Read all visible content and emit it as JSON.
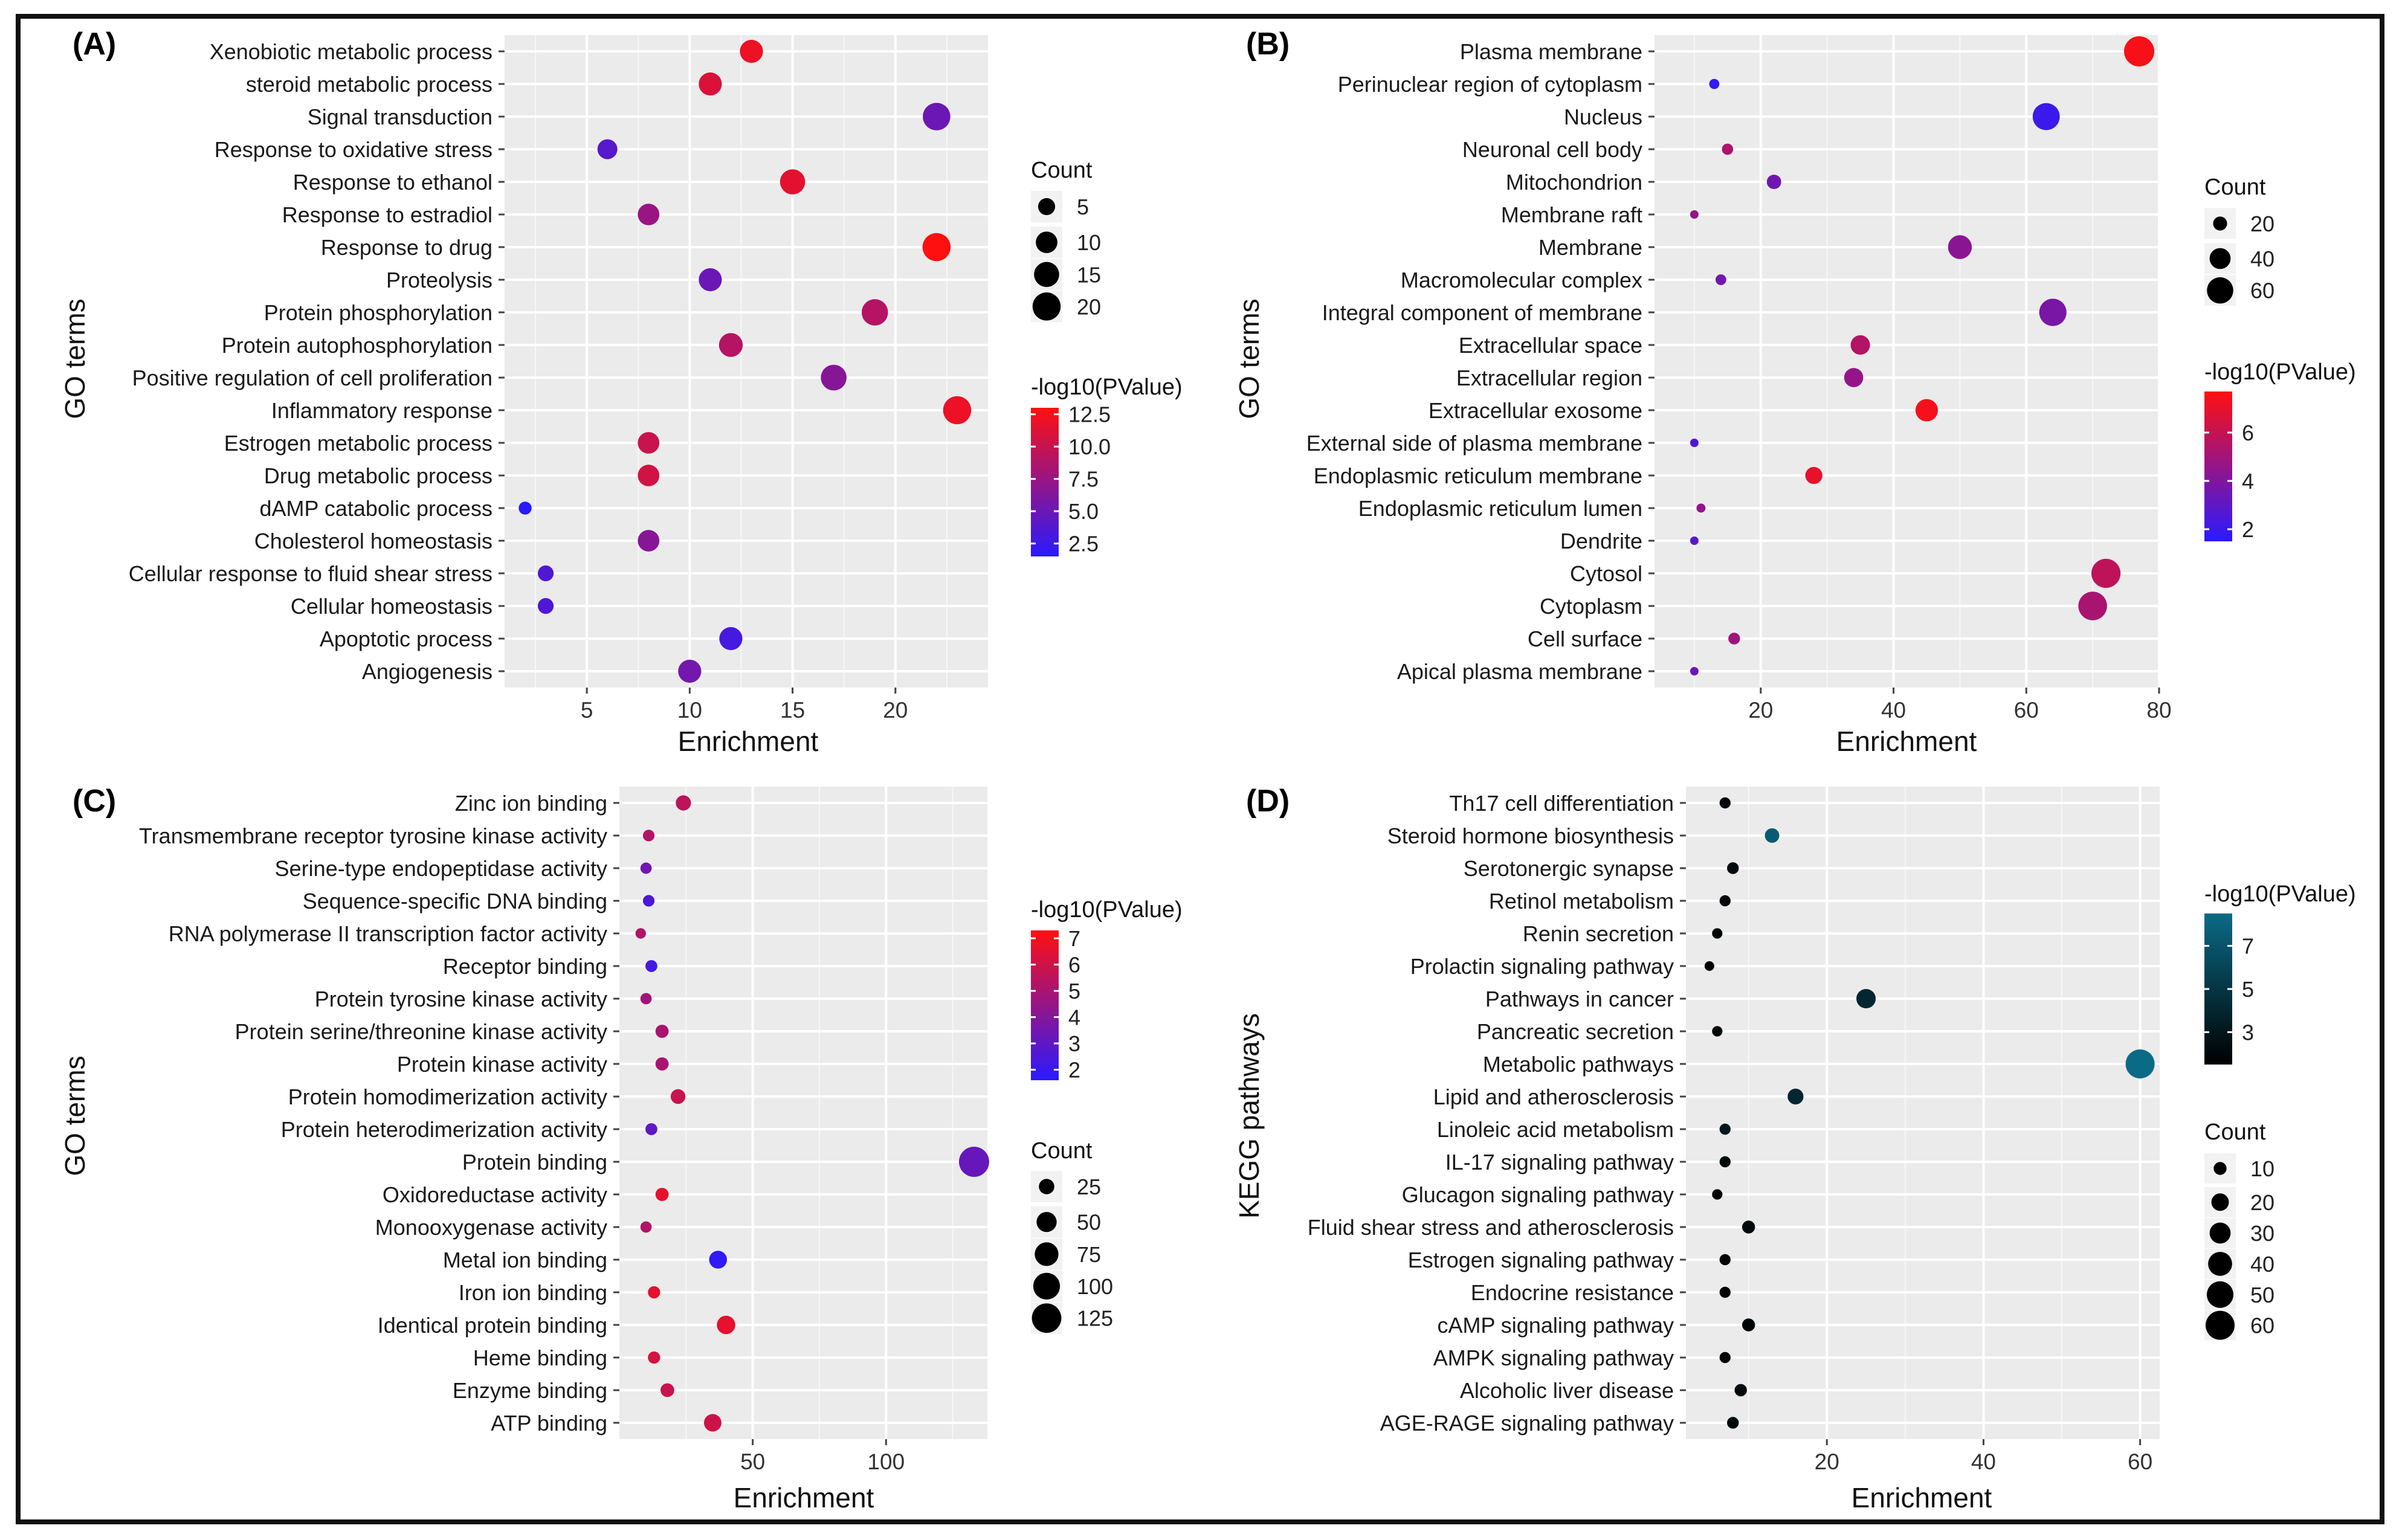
{
  "chart_data": [
    {
      "panel": "(A)",
      "type": "scatter",
      "xlabel": "Enrichment",
      "ylabel": "GO terms",
      "xlim": [
        1,
        24.5
      ],
      "xticks": [
        5,
        10,
        15,
        20
      ],
      "color_legend": {
        "title": "-log10(PValue)",
        "ticks": [
          "12.5",
          "10.0",
          "7.5",
          "5.0",
          "2.5"
        ],
        "range": [
          1.5,
          13
        ],
        "low": "#2a1aff",
        "high": "#ff1010"
      },
      "size_legend": {
        "title": "Count",
        "values": [
          5,
          10,
          15,
          20
        ]
      },
      "size_range": [
        1,
        24
      ],
      "terms": [
        "Xenobiotic metabolic process",
        "steroid metabolic process",
        "Signal transduction",
        "Response to oxidative stress",
        "Response to ethanol",
        "Response to estradiol",
        "Response to drug",
        "Proteolysis",
        "Protein phosphorylation",
        "Protein autophosphorylation",
        "Positive regulation of cell proliferation",
        "Inflammatory response",
        "Estrogen metabolic process",
        "Drug metabolic process",
        "dAMP catabolic process",
        "Cholesterol homeostasis",
        "Cellular response to fluid shear stress",
        "Cellular homeostasis",
        "Apoptotic process",
        "Angiogenesis"
      ],
      "points": [
        {
          "x": 13,
          "count": 12,
          "p": 12
        },
        {
          "x": 11,
          "count": 12,
          "p": 11
        },
        {
          "x": 22,
          "count": 19,
          "p": 5
        },
        {
          "x": 6,
          "count": 8,
          "p": 4
        },
        {
          "x": 15,
          "count": 15,
          "p": 11.5
        },
        {
          "x": 8,
          "count": 10,
          "p": 7.5
        },
        {
          "x": 22,
          "count": 20,
          "p": 13
        },
        {
          "x": 11,
          "count": 12,
          "p": 5
        },
        {
          "x": 19,
          "count": 17,
          "p": 9
        },
        {
          "x": 12,
          "count": 13,
          "p": 9
        },
        {
          "x": 17,
          "count": 16,
          "p": 6.5
        },
        {
          "x": 23,
          "count": 20,
          "p": 12
        },
        {
          "x": 8,
          "count": 10,
          "p": 10
        },
        {
          "x": 8,
          "count": 10,
          "p": 10.5
        },
        {
          "x": 2,
          "count": 2,
          "p": 1.5
        },
        {
          "x": 8,
          "count": 10,
          "p": 6.5
        },
        {
          "x": 3,
          "count": 4,
          "p": 3.5
        },
        {
          "x": 3,
          "count": 4,
          "p": 3.5
        },
        {
          "x": 12,
          "count": 12,
          "p": 3
        },
        {
          "x": 10,
          "count": 12,
          "p": 5.5
        }
      ]
    },
    {
      "panel": "(B)",
      "type": "scatter",
      "xlabel": "Enrichment",
      "ylabel": "GO terms",
      "xlim": [
        4,
        80
      ],
      "xticks": [
        20,
        40,
        60,
        80
      ],
      "color_legend": {
        "title": "-log10(PValue)",
        "ticks": [
          "6",
          "4",
          "2"
        ],
        "range": [
          1.5,
          7.7
        ],
        "low": "#2a1aff",
        "high": "#ff1010"
      },
      "size_legend": {
        "title": "Count",
        "values": [
          20,
          40,
          60
        ]
      },
      "size_range": [
        9,
        77
      ],
      "terms": [
        "Plasma membrane",
        "Perinuclear region of cytoplasm",
        "Nucleus",
        "Neuronal cell body",
        "Mitochondrion",
        "Membrane raft",
        "Membrane",
        "Macromolecular complex",
        "Integral component of membrane",
        "Extracellular space",
        "Extracellular region",
        "Extracellular exosome",
        "External side of plasma membrane",
        "Endoplasmic reticulum membrane",
        "Endoplasmic reticulum lumen",
        "Dendrite",
        "Cytosol",
        "Cytoplasm",
        "Cell surface",
        "Apical plasma membrane"
      ],
      "points": [
        {
          "x": 77,
          "count": 77,
          "p": 7.5
        },
        {
          "x": 13,
          "count": 12,
          "p": 1.8
        },
        {
          "x": 63,
          "count": 63,
          "p": 2
        },
        {
          "x": 15,
          "count": 14,
          "p": 5.3
        },
        {
          "x": 22,
          "count": 21,
          "p": 3.5
        },
        {
          "x": 10,
          "count": 9,
          "p": 4.5
        },
        {
          "x": 50,
          "count": 50,
          "p": 4.3
        },
        {
          "x": 14,
          "count": 13,
          "p": 3.6
        },
        {
          "x": 64,
          "count": 64,
          "p": 3.8
        },
        {
          "x": 35,
          "count": 35,
          "p": 5.5
        },
        {
          "x": 34,
          "count": 34,
          "p": 4.6
        },
        {
          "x": 45,
          "count": 45,
          "p": 7.4
        },
        {
          "x": 10,
          "count": 9,
          "p": 2.5
        },
        {
          "x": 28,
          "count": 28,
          "p": 7
        },
        {
          "x": 11,
          "count": 10,
          "p": 4.5
        },
        {
          "x": 10,
          "count": 9,
          "p": 2.8
        },
        {
          "x": 72,
          "count": 72,
          "p": 5.8
        },
        {
          "x": 70,
          "count": 70,
          "p": 5.2
        },
        {
          "x": 16,
          "count": 15,
          "p": 4.9
        },
        {
          "x": 10,
          "count": 9,
          "p": 3.4
        }
      ]
    },
    {
      "panel": "(C)",
      "type": "scatter",
      "xlabel": "Enrichment",
      "ylabel": "GO terms",
      "xlim": [
        0,
        138
      ],
      "xticks": [
        50,
        100
      ],
      "color_legend": {
        "title": "-log10(PValue)",
        "ticks": [
          "7",
          "6",
          "5",
          "4",
          "3",
          "2"
        ],
        "range": [
          1.6,
          7.3
        ],
        "low": "#2a1aff",
        "high": "#ff1010"
      },
      "size_legend": {
        "title": "Count",
        "values": [
          25,
          50,
          75,
          100,
          125
        ]
      },
      "size_range": [
        6,
        133
      ],
      "terms": [
        "Zinc ion binding",
        "Transmembrane receptor tyrosine kinase activity",
        "Serine-type endopeptidase activity",
        "Sequence-specific DNA binding",
        "RNA polymerase II transcription factor activity",
        "Receptor binding",
        "Protein tyrosine kinase activity",
        "Protein serine/threonine kinase activity",
        "Protein kinase activity",
        "Protein homodimerization activity",
        "Protein heterodimerization activity",
        "Protein binding",
        "Oxidoreductase activity",
        "Monooxygenase activity",
        "Metal ion binding",
        "Iron ion binding",
        "Identical protein binding",
        "Heme binding",
        "Enzyme binding",
        "ATP binding"
      ],
      "points": [
        {
          "x": 24,
          "count": 24,
          "p": 5.5
        },
        {
          "x": 11,
          "count": 11,
          "p": 5.3
        },
        {
          "x": 10,
          "count": 10,
          "p": 3.5
        },
        {
          "x": 11,
          "count": 11,
          "p": 2.5
        },
        {
          "x": 8,
          "count": 8,
          "p": 5.2
        },
        {
          "x": 12,
          "count": 12,
          "p": 2.3
        },
        {
          "x": 10,
          "count": 10,
          "p": 4.8
        },
        {
          "x": 16,
          "count": 16,
          "p": 5
        },
        {
          "x": 16,
          "count": 16,
          "p": 5
        },
        {
          "x": 22,
          "count": 22,
          "p": 5.8
        },
        {
          "x": 12,
          "count": 12,
          "p": 3
        },
        {
          "x": 133,
          "count": 133,
          "p": 3.2
        },
        {
          "x": 16,
          "count": 16,
          "p": 6.6
        },
        {
          "x": 10,
          "count": 10,
          "p": 5.3
        },
        {
          "x": 37,
          "count": 37,
          "p": 1.8
        },
        {
          "x": 13,
          "count": 13,
          "p": 6.6
        },
        {
          "x": 40,
          "count": 40,
          "p": 6.6
        },
        {
          "x": 13,
          "count": 13,
          "p": 6.2
        },
        {
          "x": 18,
          "count": 18,
          "p": 5.8
        },
        {
          "x": 35,
          "count": 35,
          "p": 6
        }
      ]
    },
    {
      "panel": "(D)",
      "type": "scatter",
      "xlabel": "Enrichment",
      "ylabel": "KEGG pathways",
      "xlim": [
        2,
        62.5
      ],
      "xticks": [
        20,
        40,
        60
      ],
      "color_legend": {
        "title": "-log10(PValue)",
        "ticks": [
          "7",
          "5",
          "3"
        ],
        "range": [
          1.5,
          8.5
        ],
        "low": "#000000",
        "high": "#0b6a86"
      },
      "size_legend": {
        "title": "Count",
        "values": [
          10,
          20,
          30,
          40,
          50,
          60
        ]
      },
      "size_range": [
        5,
        60
      ],
      "terms": [
        "Th17 cell differentiation",
        "Steroid hormone biosynthesis",
        "Serotonergic synapse",
        "Retinol metabolism",
        "Renin secretion",
        "Prolactin signaling pathway",
        "Pathways in cancer",
        "Pancreatic secretion",
        "Metabolic pathways",
        "Lipid and atherosclerosis",
        "Linoleic acid metabolism",
        "IL-17 signaling pathway",
        "Glucagon signaling pathway",
        "Fluid shear stress and atherosclerosis",
        "Estrogen signaling pathway",
        "Endocrine resistance",
        "cAMP signaling pathway",
        "AMPK signaling pathway",
        "Alcoholic liver disease",
        "AGE-RAGE signaling pathway"
      ],
      "points": [
        {
          "x": 7,
          "count": 7,
          "p": 2
        },
        {
          "x": 13,
          "count": 13,
          "p": 7.5
        },
        {
          "x": 8,
          "count": 8,
          "p": 2.2
        },
        {
          "x": 7,
          "count": 7,
          "p": 1.8
        },
        {
          "x": 6,
          "count": 6,
          "p": 1.6
        },
        {
          "x": 5,
          "count": 5,
          "p": 1.5
        },
        {
          "x": 25,
          "count": 25,
          "p": 4
        },
        {
          "x": 6,
          "count": 6,
          "p": 1.8
        },
        {
          "x": 60,
          "count": 60,
          "p": 8.5
        },
        {
          "x": 16,
          "count": 16,
          "p": 4
        },
        {
          "x": 7,
          "count": 7,
          "p": 3
        },
        {
          "x": 7,
          "count": 7,
          "p": 2
        },
        {
          "x": 6,
          "count": 6,
          "p": 1.8
        },
        {
          "x": 10,
          "count": 10,
          "p": 2.2
        },
        {
          "x": 7,
          "count": 7,
          "p": 1.8
        },
        {
          "x": 7,
          "count": 7,
          "p": 1.8
        },
        {
          "x": 10,
          "count": 10,
          "p": 1.8
        },
        {
          "x": 7,
          "count": 7,
          "p": 1.8
        },
        {
          "x": 9,
          "count": 9,
          "p": 2
        },
        {
          "x": 8,
          "count": 8,
          "p": 2
        }
      ]
    }
  ]
}
